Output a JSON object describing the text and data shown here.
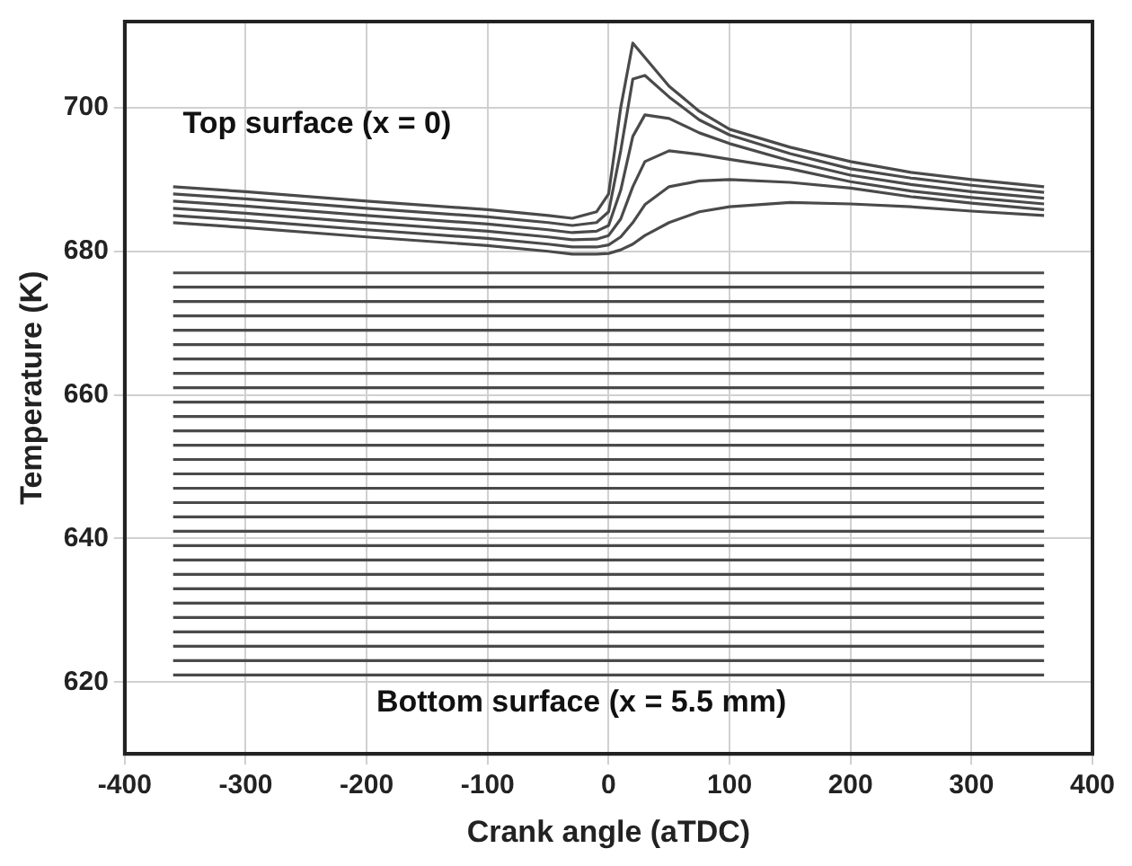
{
  "chart_data": {
    "type": "line",
    "xlabel": "Crank angle (aTDC)",
    "ylabel": "Temperature (K)",
    "annotations": [
      "Top surface (x = 0)",
      "Bottom surface (x = 5.5 mm)"
    ],
    "xlim": [
      -400,
      400
    ],
    "xticks": [
      -400,
      -300,
      -200,
      -100,
      0,
      100,
      200,
      300,
      400
    ],
    "ylim": [
      610,
      712
    ],
    "yticks": [
      620,
      640,
      660,
      680,
      700
    ],
    "grid": true,
    "legend": false,
    "marker": "none",
    "line_style": "solid",
    "x": [
      -360,
      -300,
      -200,
      -100,
      -50,
      -30,
      -10,
      0,
      10,
      20,
      30,
      50,
      75,
      100,
      150,
      200,
      250,
      300,
      360
    ],
    "series": [
      {
        "color": "#4a4a4a",
        "values": [
          689,
          688.3,
          687,
          685.8,
          685,
          684.6,
          685.5,
          688,
          700,
          709,
          707,
          703,
          699.5,
          697,
          694.5,
          692.5,
          691,
          690,
          689
        ]
      },
      {
        "color": "#4a4a4a",
        "values": [
          688,
          687.3,
          686,
          684.8,
          684,
          683.6,
          684,
          685.5,
          694,
          704,
          704.5,
          701.5,
          698.3,
          696.2,
          693.6,
          691.5,
          690.2,
          689.2,
          688.2
        ]
      },
      {
        "color": "#4a4a4a",
        "values": [
          687,
          686.3,
          685,
          683.8,
          683,
          682.6,
          682.8,
          683.6,
          688.5,
          696,
          699,
          698.5,
          696.5,
          695,
          692.6,
          690.6,
          689.3,
          688.3,
          687.4
        ]
      },
      {
        "color": "#4a4a4a",
        "values": [
          686,
          685.3,
          684,
          682.8,
          682,
          681.6,
          681.7,
          682.2,
          684.5,
          689,
          692.5,
          694,
          693.5,
          692.8,
          691.5,
          689.7,
          688.4,
          687.5,
          686.6
        ]
      },
      {
        "color": "#4a4a4a",
        "values": [
          685,
          684.3,
          683,
          681.8,
          681,
          680.6,
          680.6,
          680.9,
          682,
          684,
          686.5,
          689,
          689.8,
          690,
          689.6,
          688.8,
          687.6,
          686.7,
          685.8
        ]
      },
      {
        "color": "#4a4a4a",
        "values": [
          684,
          683.3,
          682,
          680.8,
          680,
          679.6,
          679.6,
          679.7,
          680.2,
          681,
          682.2,
          684,
          685.5,
          686.2,
          686.8,
          686.6,
          686.2,
          685.6,
          685
        ]
      },
      {
        "color": "#4a4a4a",
        "values": [
          677,
          677,
          677,
          677,
          677,
          677,
          677,
          677,
          677,
          677,
          677,
          677,
          677,
          677,
          677,
          677,
          677,
          677,
          677
        ]
      },
      {
        "color": "#4a4a4a",
        "values": [
          675,
          675,
          675,
          675,
          675,
          675,
          675,
          675,
          675,
          675,
          675,
          675,
          675,
          675,
          675,
          675,
          675,
          675,
          675
        ]
      },
      {
        "color": "#4a4a4a",
        "values": [
          673,
          673,
          673,
          673,
          673,
          673,
          673,
          673,
          673,
          673,
          673,
          673,
          673,
          673,
          673,
          673,
          673,
          673,
          673
        ]
      },
      {
        "color": "#4a4a4a",
        "values": [
          671,
          671,
          671,
          671,
          671,
          671,
          671,
          671,
          671,
          671,
          671,
          671,
          671,
          671,
          671,
          671,
          671,
          671,
          671
        ]
      },
      {
        "color": "#4a4a4a",
        "values": [
          669,
          669,
          669,
          669,
          669,
          669,
          669,
          669,
          669,
          669,
          669,
          669,
          669,
          669,
          669,
          669,
          669,
          669,
          669
        ]
      },
      {
        "color": "#4a4a4a",
        "values": [
          667,
          667,
          667,
          667,
          667,
          667,
          667,
          667,
          667,
          667,
          667,
          667,
          667,
          667,
          667,
          667,
          667,
          667,
          667
        ]
      },
      {
        "color": "#4a4a4a",
        "values": [
          665,
          665,
          665,
          665,
          665,
          665,
          665,
          665,
          665,
          665,
          665,
          665,
          665,
          665,
          665,
          665,
          665,
          665,
          665
        ]
      },
      {
        "color": "#4a4a4a",
        "values": [
          663,
          663,
          663,
          663,
          663,
          663,
          663,
          663,
          663,
          663,
          663,
          663,
          663,
          663,
          663,
          663,
          663,
          663,
          663
        ]
      },
      {
        "color": "#4a4a4a",
        "values": [
          661,
          661,
          661,
          661,
          661,
          661,
          661,
          661,
          661,
          661,
          661,
          661,
          661,
          661,
          661,
          661,
          661,
          661,
          661
        ]
      },
      {
        "color": "#4a4a4a",
        "values": [
          659,
          659,
          659,
          659,
          659,
          659,
          659,
          659,
          659,
          659,
          659,
          659,
          659,
          659,
          659,
          659,
          659,
          659,
          659
        ]
      },
      {
        "color": "#4a4a4a",
        "values": [
          657,
          657,
          657,
          657,
          657,
          657,
          657,
          657,
          657,
          657,
          657,
          657,
          657,
          657,
          657,
          657,
          657,
          657,
          657
        ]
      },
      {
        "color": "#4a4a4a",
        "values": [
          655,
          655,
          655,
          655,
          655,
          655,
          655,
          655,
          655,
          655,
          655,
          655,
          655,
          655,
          655,
          655,
          655,
          655,
          655
        ]
      },
      {
        "color": "#4a4a4a",
        "values": [
          653,
          653,
          653,
          653,
          653,
          653,
          653,
          653,
          653,
          653,
          653,
          653,
          653,
          653,
          653,
          653,
          653,
          653,
          653
        ]
      },
      {
        "color": "#4a4a4a",
        "values": [
          651,
          651,
          651,
          651,
          651,
          651,
          651,
          651,
          651,
          651,
          651,
          651,
          651,
          651,
          651,
          651,
          651,
          651,
          651
        ]
      },
      {
        "color": "#4a4a4a",
        "values": [
          649,
          649,
          649,
          649,
          649,
          649,
          649,
          649,
          649,
          649,
          649,
          649,
          649,
          649,
          649,
          649,
          649,
          649,
          649
        ]
      },
      {
        "color": "#4a4a4a",
        "values": [
          647,
          647,
          647,
          647,
          647,
          647,
          647,
          647,
          647,
          647,
          647,
          647,
          647,
          647,
          647,
          647,
          647,
          647,
          647
        ]
      },
      {
        "color": "#4a4a4a",
        "values": [
          645,
          645,
          645,
          645,
          645,
          645,
          645,
          645,
          645,
          645,
          645,
          645,
          645,
          645,
          645,
          645,
          645,
          645,
          645
        ]
      },
      {
        "color": "#4a4a4a",
        "values": [
          643,
          643,
          643,
          643,
          643,
          643,
          643,
          643,
          643,
          643,
          643,
          643,
          643,
          643,
          643,
          643,
          643,
          643,
          643
        ]
      },
      {
        "color": "#4a4a4a",
        "values": [
          641,
          641,
          641,
          641,
          641,
          641,
          641,
          641,
          641,
          641,
          641,
          641,
          641,
          641,
          641,
          641,
          641,
          641,
          641
        ]
      },
      {
        "color": "#4a4a4a",
        "values": [
          639,
          639,
          639,
          639,
          639,
          639,
          639,
          639,
          639,
          639,
          639,
          639,
          639,
          639,
          639,
          639,
          639,
          639,
          639
        ]
      },
      {
        "color": "#4a4a4a",
        "values": [
          637,
          637,
          637,
          637,
          637,
          637,
          637,
          637,
          637,
          637,
          637,
          637,
          637,
          637,
          637,
          637,
          637,
          637,
          637
        ]
      },
      {
        "color": "#4a4a4a",
        "values": [
          635,
          635,
          635,
          635,
          635,
          635,
          635,
          635,
          635,
          635,
          635,
          635,
          635,
          635,
          635,
          635,
          635,
          635,
          635
        ]
      },
      {
        "color": "#4a4a4a",
        "values": [
          633,
          633,
          633,
          633,
          633,
          633,
          633,
          633,
          633,
          633,
          633,
          633,
          633,
          633,
          633,
          633,
          633,
          633,
          633
        ]
      },
      {
        "color": "#4a4a4a",
        "values": [
          631,
          631,
          631,
          631,
          631,
          631,
          631,
          631,
          631,
          631,
          631,
          631,
          631,
          631,
          631,
          631,
          631,
          631,
          631
        ]
      },
      {
        "color": "#4a4a4a",
        "values": [
          629,
          629,
          629,
          629,
          629,
          629,
          629,
          629,
          629,
          629,
          629,
          629,
          629,
          629,
          629,
          629,
          629,
          629,
          629
        ]
      },
      {
        "color": "#4a4a4a",
        "values": [
          627,
          627,
          627,
          627,
          627,
          627,
          627,
          627,
          627,
          627,
          627,
          627,
          627,
          627,
          627,
          627,
          627,
          627,
          627
        ]
      },
      {
        "color": "#4a4a4a",
        "values": [
          625,
          625,
          625,
          625,
          625,
          625,
          625,
          625,
          625,
          625,
          625,
          625,
          625,
          625,
          625,
          625,
          625,
          625,
          625
        ]
      },
      {
        "color": "#4a4a4a",
        "values": [
          623,
          623,
          623,
          623,
          623,
          623,
          623,
          623,
          623,
          623,
          623,
          623,
          623,
          623,
          623,
          623,
          623,
          623,
          623
        ]
      },
      {
        "color": "#4a4a4a",
        "values": [
          621,
          621,
          621,
          621,
          621,
          621,
          621,
          621,
          621,
          621,
          621,
          621,
          621,
          621,
          621,
          621,
          621,
          621,
          621
        ]
      }
    ]
  }
}
